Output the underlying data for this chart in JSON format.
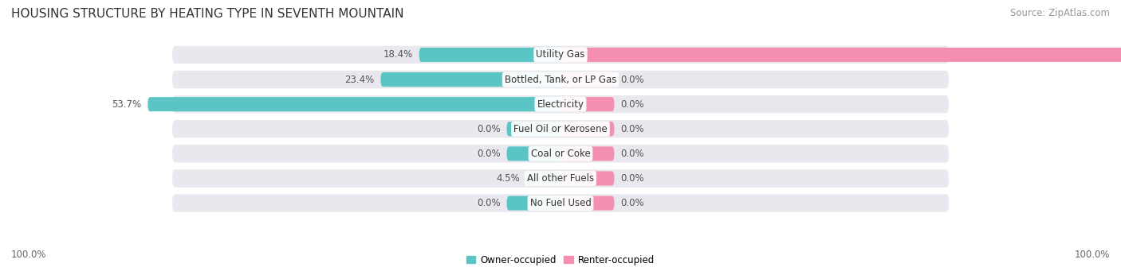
{
  "title": "HOUSING STRUCTURE BY HEATING TYPE IN SEVENTH MOUNTAIN",
  "source": "Source: ZipAtlas.com",
  "categories": [
    "Utility Gas",
    "Bottled, Tank, or LP Gas",
    "Electricity",
    "Fuel Oil or Kerosene",
    "Coal or Coke",
    "All other Fuels",
    "No Fuel Used"
  ],
  "owner_values": [
    18.4,
    23.4,
    53.7,
    0.0,
    0.0,
    4.5,
    0.0
  ],
  "renter_values": [
    100.0,
    0.0,
    0.0,
    0.0,
    0.0,
    0.0,
    0.0
  ],
  "owner_color": "#5BC4C4",
  "renter_color": "#F48FB1",
  "bar_bg_color": "#E8E8EE",
  "title_fontsize": 11,
  "source_fontsize": 8.5,
  "label_fontsize": 8.5,
  "value_fontsize": 8.5,
  "tick_fontsize": 8.5,
  "axis_label_left": "100.0%",
  "axis_label_right": "100.0%",
  "min_stub_pct": 7.0,
  "zero_stub_pct": 7.0
}
